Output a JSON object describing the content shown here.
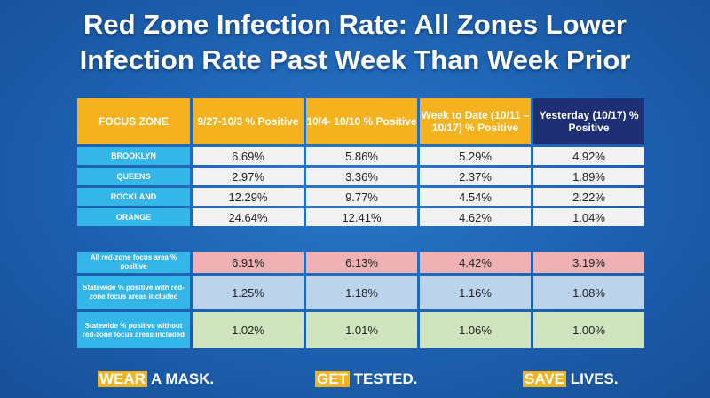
{
  "title": {
    "line1": "Red Zone Infection Rate: All Zones Lower",
    "line2": "Infection Rate Past Week Than Week Prior"
  },
  "table": {
    "headers": [
      "FOCUS ZONE",
      "9/27-10/3 % Positive",
      "10/4- 10/10 % Positive",
      "Week to Date (10/11 – 10/17) % Positive",
      "Yesterday (10/17) % Positive"
    ],
    "rows": [
      {
        "zone": "BROOKLYN",
        "values": [
          "6.69%",
          "5.86%",
          "5.29%",
          "4.92%"
        ]
      },
      {
        "zone": "QUEENS",
        "values": [
          "2.97%",
          "3.36%",
          "2.37%",
          "1.89%"
        ]
      },
      {
        "zone": "ROCKLAND",
        "values": [
          "12.29%",
          "9.77%",
          "4.54%",
          "2.22%"
        ]
      },
      {
        "zone": "ORANGE",
        "values": [
          "24.64%",
          "12.41%",
          "4.62%",
          "1.04%"
        ]
      }
    ]
  },
  "summary": {
    "rows": [
      {
        "label": "All red-zone focus area % positive",
        "values": [
          "6.91%",
          "6.13%",
          "4.42%",
          "3.19%"
        ]
      },
      {
        "label": "Statewide % positive with red-zone focus areas included",
        "values": [
          "1.25%",
          "1.18%",
          "1.16%",
          "1.08%"
        ]
      },
      {
        "label": "Statewide % positive without red-zone focus areas included",
        "values": [
          "1.02%",
          "1.01%",
          "1.06%",
          "1.00%"
        ]
      }
    ]
  },
  "footer": {
    "mask_hl": "WEAR",
    "mask_rest": " A MASK.",
    "test_hl": "GET",
    "test_rest": " TESTED.",
    "save_hl": "SAVE",
    "save_rest": " LIVES."
  },
  "colors": {
    "gold": "#f5b21f",
    "navy": "#1e2f75",
    "cyan": "#35b6e8",
    "pink": "#efb1b4",
    "light_blue": "#bcd3ec",
    "green": "#cfe4bf"
  }
}
